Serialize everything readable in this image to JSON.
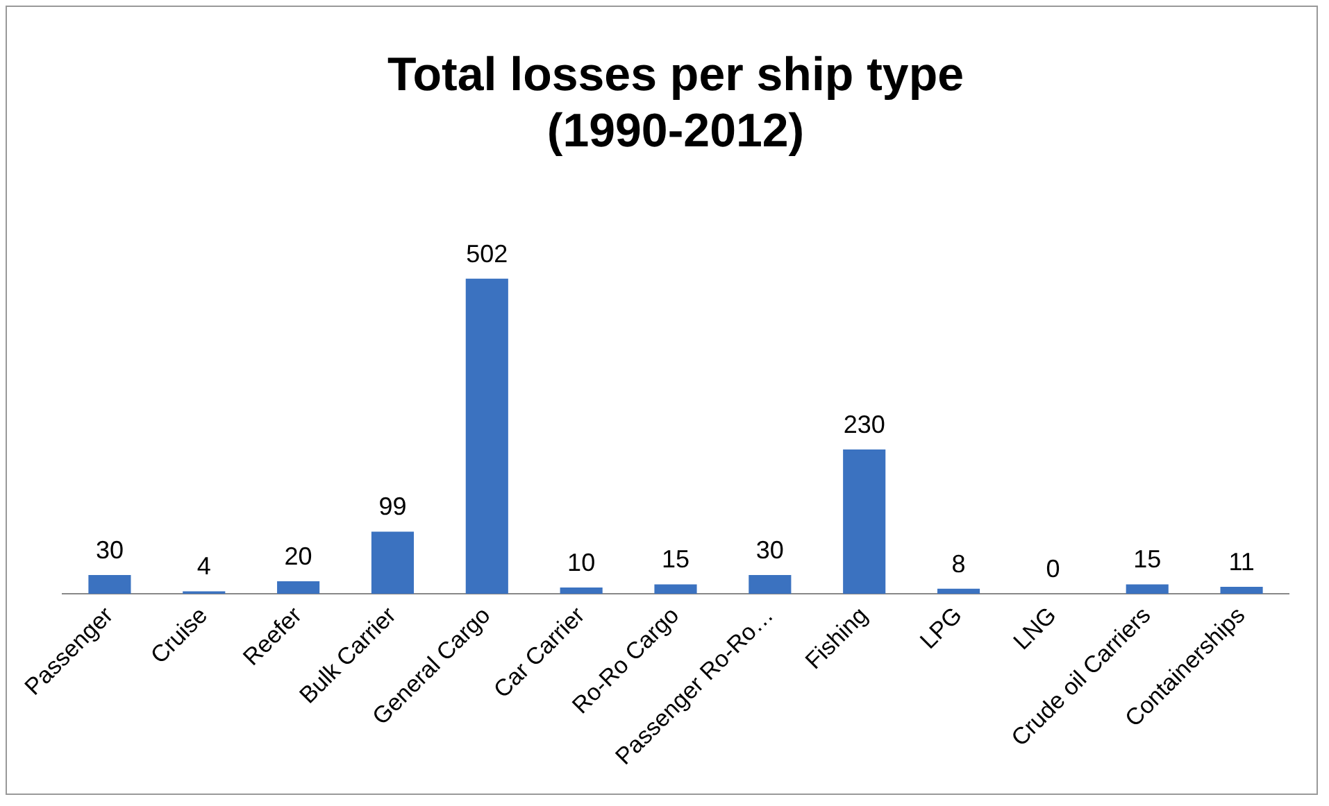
{
  "chart_data": {
    "type": "bar",
    "title": "Total losses per ship type\n(1990-2012)",
    "categories": [
      "Passenger",
      "Cruise",
      "Reefer",
      "Bulk Carrier",
      "General Cargo",
      "Car Carrier",
      "Ro-Ro Cargo",
      "Passenger Ro-Ro…",
      "Fishing",
      "LPG",
      "LNG",
      "Crude oil Carriers",
      "Containerships"
    ],
    "values": [
      30,
      4,
      20,
      99,
      502,
      10,
      15,
      30,
      230,
      8,
      0,
      15,
      11
    ],
    "color": "#3b72c0",
    "data_labels": true,
    "grid": false,
    "legend": false,
    "tick_labels": "x"
  }
}
